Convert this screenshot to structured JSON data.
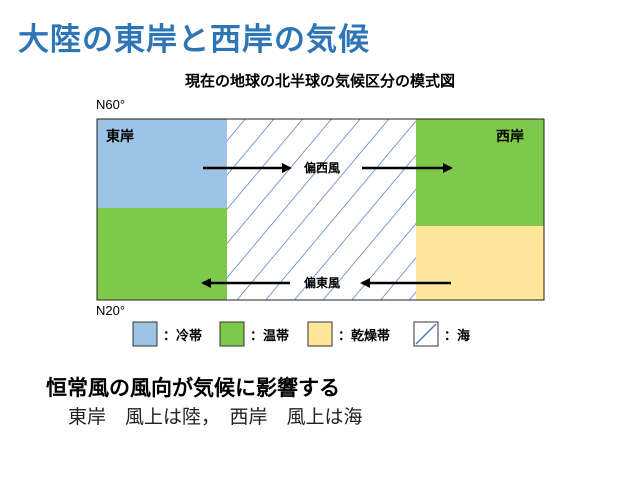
{
  "title": "大陸の東岸と西岸の気候",
  "subtitle": "現在の地球の北半球の気候区分の模式図",
  "latitude": {
    "top": "N60°",
    "bottom": "N20°"
  },
  "coasts": {
    "east": "東岸",
    "west": "西岸"
  },
  "winds": {
    "westerlies": "偏西風",
    "easterlies": "偏東風"
  },
  "legend": [
    {
      "label": "：冷帯",
      "color": "#9dc3e6"
    },
    {
      "label": "：温帯",
      "color": "#7fc94a"
    },
    {
      "label": "：乾燥帯",
      "color": "#ffe699"
    },
    {
      "label": "：海",
      "color": "#4472c4"
    }
  ],
  "colors": {
    "title": "#2e75b6",
    "cold": "#9dc3e6",
    "temperate": "#7fc94a",
    "dry": "#ffe699",
    "sea_hatch": "#4472c4"
  },
  "conclusion": {
    "heading": "恒常風の風向が気候に影響する",
    "body": "東岸　風上は陸，　西岸　風上は海"
  }
}
